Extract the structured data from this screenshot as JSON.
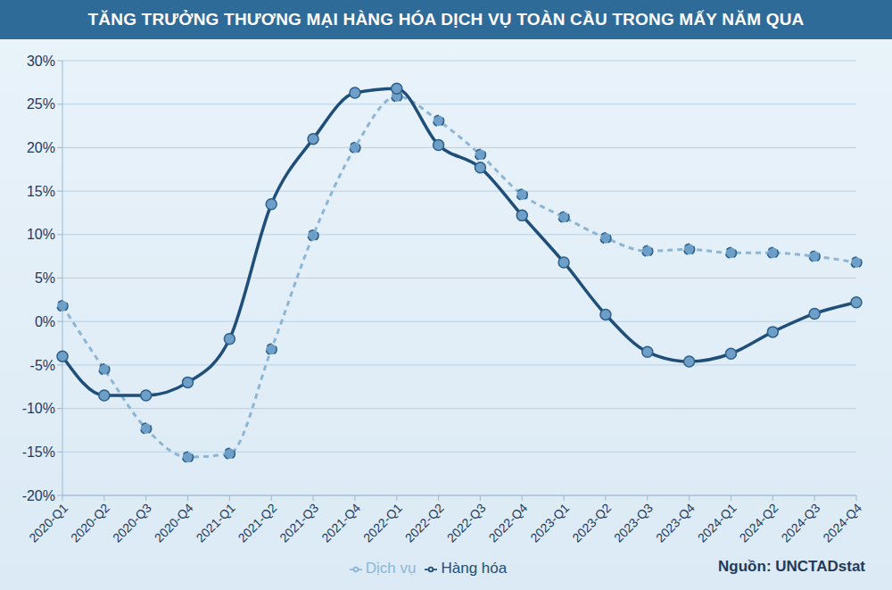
{
  "chart_data": {
    "type": "line",
    "title": "TĂNG TRƯỞNG THƯƠNG MẠI HÀNG HÓA DỊCH VỤ TOÀN CẦU TRONG MẤY NĂM QUA",
    "source": "Nguồn: UNCTADstat",
    "categories": [
      "2020-Q1",
      "2020-Q2",
      "2020-Q3",
      "2020-Q4",
      "2021-Q1",
      "2021-Q2",
      "2021-Q3",
      "2021-Q4",
      "2022-Q1",
      "2022-Q2",
      "2022-Q3",
      "2022-Q4",
      "2023-Q1",
      "2023-Q2",
      "2023-Q3",
      "2023-Q4",
      "2024-Q1",
      "2024-Q2",
      "2024-Q3",
      "2024-Q4"
    ],
    "series": [
      {
        "name": "Dịch vụ",
        "color": "#8db6d6",
        "line_style": "dashed",
        "marker": "circle",
        "values": [
          1.8,
          -5.5,
          -12.3,
          -15.6,
          -15.2,
          -3.2,
          9.9,
          20,
          25.9,
          23.1,
          19.2,
          14.6,
          12,
          9.6,
          8.1,
          8.3,
          7.9,
          7.9,
          7.5,
          6.8
        ]
      },
      {
        "name": "Hàng hóa",
        "color": "#1f4e79",
        "line_style": "solid",
        "marker": "circle",
        "values": [
          -4,
          -8.5,
          -8.5,
          -7,
          -2,
          13.5,
          21,
          26.3,
          26.8,
          20.3,
          17.7,
          12.2,
          6.8,
          0.8,
          -3.5,
          -4.6,
          -3.7,
          -1.2,
          0.9,
          2.2
        ]
      }
    ],
    "ylim": [
      -20,
      30
    ],
    "yticks": [
      {
        "value": -20,
        "label": "-20%"
      },
      {
        "value": -15,
        "label": "-15%"
      },
      {
        "value": -10,
        "label": "-10%"
      },
      {
        "value": -5,
        "label": "-5%"
      },
      {
        "value": 0,
        "label": "0%"
      },
      {
        "value": 5,
        "label": "5%"
      },
      {
        "value": 10,
        "label": "10%"
      },
      {
        "value": 15,
        "label": "15%"
      },
      {
        "value": 20,
        "label": "20%"
      },
      {
        "value": 25,
        "label": "25%"
      },
      {
        "value": 30,
        "label": "30%"
      }
    ],
    "grid": true,
    "legend": "bottom"
  }
}
